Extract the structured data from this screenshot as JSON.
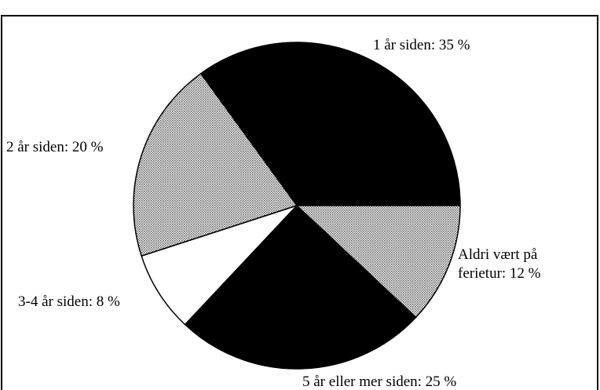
{
  "chart_data": {
    "type": "pie",
    "values": [
      35,
      20,
      8,
      25,
      12
    ],
    "value_labels": [
      "1 år siden: 35 %",
      "2 år siden: 20 %",
      "3-4 år siden: 8 %",
      "5 år eller mer siden: 25 %",
      "Aldri vært på\nferietur: 12 %"
    ],
    "colors": [
      "#000000",
      "#c4c4c4",
      "#ffffff",
      "#000000",
      "#c4c4c4"
    ]
  }
}
